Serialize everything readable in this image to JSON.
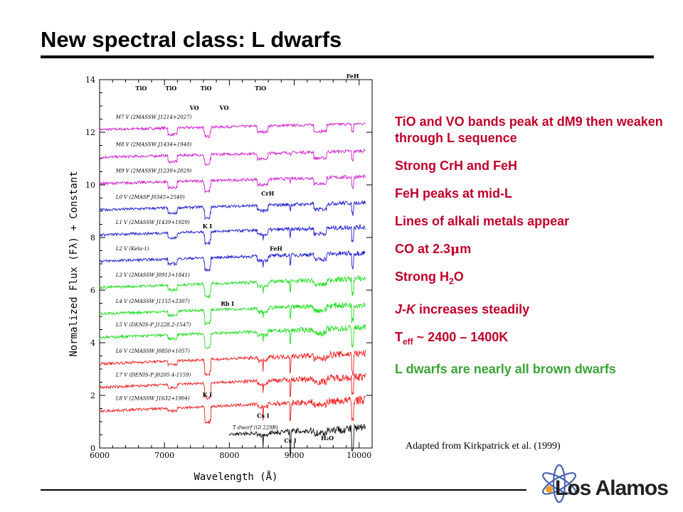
{
  "slide": {
    "title": "New spectral class: L dwarfs",
    "credit": "Adapted from Kirkpatrick et al. (1999)",
    "logo_text": "Los Alamos"
  },
  "bullets": [
    {
      "text": "TiO and VO bands peak at dM9 then weaken through L sequence"
    },
    {
      "text": "Strong CrH and FeH"
    },
    {
      "text": "FeH peaks at mid-L"
    },
    {
      "text": "Lines of alkali metals appear"
    },
    {
      "pre": "CO at 2.3",
      "sym": "μ",
      "post": "m"
    },
    {
      "pre": "Strong H",
      "sub": "2",
      "post": "O"
    },
    {
      "pre": "J-K",
      "post": " increases steadily"
    },
    {
      "pre": "T",
      "sub": "eff",
      "post": " ~ 2400 – 1400K"
    },
    {
      "text": "L dwarfs are nearly all brown dwarfs",
      "color": "#3aa335"
    }
  ],
  "chart_data": {
    "type": "line",
    "title": "",
    "xlabel": "Wavelength (Å)",
    "ylabel": "Normalized Flux (Fλ) + Constant",
    "xlim": [
      6000,
      10200
    ],
    "ylim": [
      0,
      14
    ],
    "xticks": [
      6000,
      7000,
      8000,
      9000,
      10000
    ],
    "yticks": [
      0,
      2,
      4,
      6,
      8,
      10,
      12,
      14
    ],
    "colors": {
      "M": "#d020d0",
      "L_early": "#2020d0",
      "L_mid": "#22dd22",
      "L_late": "#ee2020",
      "T": "#111111"
    },
    "series": [
      {
        "name": "M7 V (2MASSW J1214+2027)",
        "group": "M",
        "offset": 12.1
      },
      {
        "name": "M8 V (2MASSW J1434+1940)",
        "group": "M",
        "offset": 11.05
      },
      {
        "name": "M9 V (2MASSW J1239+2029)",
        "group": "M",
        "offset": 10.05
      },
      {
        "name": "L0 V (2MASP J0345+2540)",
        "group": "L_early",
        "offset": 9.05
      },
      {
        "name": "L1 V (2MASSW J1439+1929)",
        "group": "L_early",
        "offset": 8.1
      },
      {
        "name": "L2 V (Kelu-1)",
        "group": "L_early",
        "offset": 7.1
      },
      {
        "name": "L3 V (2MASSW J0913+1841)",
        "group": "L_mid",
        "offset": 6.1
      },
      {
        "name": "L4 V (2MASSW J1155+2307)",
        "group": "L_mid",
        "offset": 5.1
      },
      {
        "name": "L5 V (DENIS-P J1228.2-1547)",
        "group": "L_mid",
        "offset": 4.2
      },
      {
        "name": "L6 V (2MASSW J0850+1057)",
        "group": "L_late",
        "offset": 3.2
      },
      {
        "name": "L7 V (DENIS-P J0205.4-1159)",
        "group": "L_late",
        "offset": 2.3
      },
      {
        "name": "L8 V (2MASSW J1632+1904)",
        "group": "L_late",
        "offset": 1.4
      },
      {
        "name": "T dwarf (Gl 229B)",
        "group": "T",
        "offset": 0.3
      }
    ],
    "annotations": [
      {
        "text": "TiO",
        "x": 6640,
        "y": 13.6
      },
      {
        "text": "TiO",
        "x": 7100,
        "y": 13.6
      },
      {
        "text": "TiO",
        "x": 7640,
        "y": 13.6
      },
      {
        "text": "TiO",
        "x": 8480,
        "y": 13.6
      },
      {
        "text": "VO",
        "x": 7460,
        "y": 12.85
      },
      {
        "text": "VO",
        "x": 7920,
        "y": 12.85
      },
      {
        "text": "FeH",
        "x": 9900,
        "y": 14.05
      },
      {
        "text": "CrH",
        "x": 8590,
        "y": 9.6
      },
      {
        "text": "K I",
        "x": 7660,
        "y": 8.35
      },
      {
        "text": "FeH",
        "x": 8720,
        "y": 7.5
      },
      {
        "text": "Rb I",
        "x": 7970,
        "y": 5.4
      },
      {
        "text": "K I",
        "x": 7660,
        "y": 1.95
      },
      {
        "text": "Cs I",
        "x": 8520,
        "y": 1.15
      },
      {
        "text": "Cs I",
        "x": 8940,
        "y": 0.2
      },
      {
        "text": "H₂O",
        "x": 9510,
        "y": 0.3
      }
    ]
  }
}
